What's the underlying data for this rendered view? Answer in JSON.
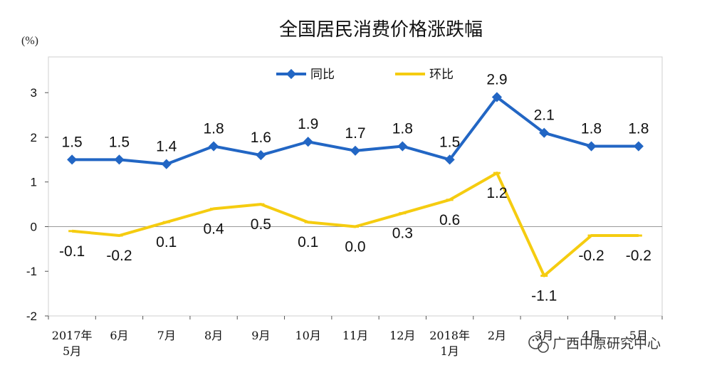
{
  "chart_data": {
    "type": "line",
    "title": "全国居民消费价格涨跌幅",
    "unit_label": "(%)",
    "categories": [
      [
        "2017年",
        "5月"
      ],
      [
        "6月"
      ],
      [
        "7月"
      ],
      [
        "8月"
      ],
      [
        "9月"
      ],
      [
        "10月"
      ],
      [
        "11月"
      ],
      [
        "12月"
      ],
      [
        "2018年",
        "1月"
      ],
      [
        "2月"
      ],
      [
        "3月"
      ],
      [
        "4月"
      ],
      [
        "5月"
      ]
    ],
    "ylim": [
      -2,
      3.8
    ],
    "yticks": [
      3,
      2,
      1,
      0,
      -1,
      -2
    ],
    "legend_position": "top-center",
    "series": [
      {
        "name": "同比",
        "color": "#2266c4",
        "values": [
          1.5,
          1.5,
          1.4,
          1.8,
          1.6,
          1.9,
          1.7,
          1.8,
          1.5,
          2.9,
          2.1,
          1.8,
          1.8
        ],
        "labels": [
          "1.5",
          "1.5",
          "1.4",
          "1.8",
          "1.6",
          "1.9",
          "1.7",
          "1.8",
          "1.5",
          "2.9",
          "2.1",
          "1.8",
          "1.8"
        ],
        "label_position": "above"
      },
      {
        "name": "环比",
        "color": "#f5cc10",
        "values": [
          -0.1,
          -0.2,
          0.1,
          0.4,
          0.5,
          0.1,
          0.0,
          0.3,
          0.6,
          1.2,
          -1.1,
          -0.2,
          -0.2
        ],
        "labels": [
          "-0.1",
          "-0.2",
          "0.1",
          "0.4",
          "0.5",
          "0.1",
          "0.0",
          "0.3",
          "0.6",
          "1.2",
          "-1.1",
          "-0.2",
          "-0.2"
        ],
        "label_position": "below"
      }
    ]
  },
  "watermark": {
    "icon": "wechat-icon",
    "text": "广西中原研究中心"
  }
}
